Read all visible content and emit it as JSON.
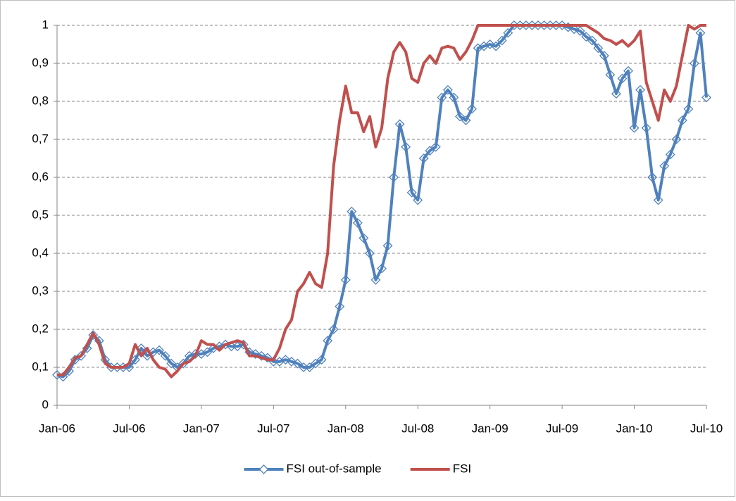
{
  "chart_data": {
    "type": "line",
    "x": [
      0,
      0.5,
      1,
      1.5,
      2,
      2.5,
      3,
      3.5,
      4,
      4.5,
      5,
      5.5,
      6,
      6.5,
      7,
      7.5,
      8,
      8.5,
      9,
      9.5,
      10,
      10.5,
      11,
      11.5,
      12,
      12.5,
      13,
      13.5,
      14,
      14.5,
      15,
      15.5,
      16,
      16.5,
      17,
      17.5,
      18,
      18.5,
      19,
      19.5,
      20,
      20.5,
      21,
      21.5,
      22,
      22.5,
      23,
      23.5,
      24,
      24.5,
      25,
      25.5,
      26,
      26.5,
      27,
      27.5,
      28,
      28.5,
      29,
      29.5,
      30,
      30.5,
      31,
      31.5,
      32,
      32.5,
      33,
      33.5,
      34,
      34.5,
      35,
      35.5,
      36,
      36.5,
      37,
      37.5,
      38,
      38.5,
      39,
      39.5,
      40,
      40.5,
      41,
      41.5,
      42,
      42.5,
      43,
      43.5,
      44,
      44.5,
      45,
      45.5,
      46,
      46.5,
      47,
      47.5,
      48,
      48.5,
      49,
      49.5,
      50,
      50.5,
      51,
      51.5,
      52,
      52.5,
      53,
      53.5,
      54
    ],
    "series": [
      {
        "name": "FSI out-of-sample",
        "color": "#4f81bd",
        "marker": "diamond",
        "values": [
          0.08,
          0.075,
          0.09,
          0.12,
          0.13,
          0.15,
          0.185,
          0.17,
          0.12,
          0.1,
          0.1,
          0.1,
          0.1,
          0.12,
          0.15,
          0.13,
          0.14,
          0.145,
          0.13,
          0.11,
          0.1,
          0.11,
          0.13,
          0.135,
          0.135,
          0.14,
          0.15,
          0.155,
          0.16,
          0.155,
          0.155,
          0.16,
          0.14,
          0.135,
          0.13,
          0.125,
          0.115,
          0.115,
          0.12,
          0.115,
          0.11,
          0.1,
          0.1,
          0.11,
          0.12,
          0.17,
          0.2,
          0.26,
          0.33,
          0.51,
          0.48,
          0.44,
          0.4,
          0.33,
          0.36,
          0.42,
          0.6,
          0.74,
          0.68,
          0.56,
          0.54,
          0.65,
          0.67,
          0.68,
          0.81,
          0.83,
          0.81,
          0.76,
          0.75,
          0.78,
          0.94,
          0.945,
          0.95,
          0.945,
          0.96,
          0.98,
          1,
          1,
          1,
          1,
          1,
          1,
          1,
          1,
          1,
          0.995,
          0.99,
          0.985,
          0.97,
          0.96,
          0.94,
          0.92,
          0.87,
          0.82,
          0.86,
          0.88,
          0.73,
          0.83,
          0.73,
          0.6,
          0.54,
          0.63,
          0.66,
          0.7,
          0.75,
          0.78,
          0.9,
          0.98,
          0.81
        ]
      },
      {
        "name": "FSI",
        "color": "#c0504d",
        "values": [
          0.08,
          0.08,
          0.1,
          0.125,
          0.13,
          0.16,
          0.19,
          0.16,
          0.11,
          0.1,
          0.1,
          0.1,
          0.11,
          0.16,
          0.13,
          0.15,
          0.12,
          0.1,
          0.095,
          0.075,
          0.09,
          0.11,
          0.115,
          0.13,
          0.17,
          0.16,
          0.16,
          0.145,
          0.16,
          0.165,
          0.17,
          0.165,
          0.13,
          0.13,
          0.125,
          0.12,
          0.12,
          0.15,
          0.2,
          0.225,
          0.3,
          0.32,
          0.35,
          0.32,
          0.31,
          0.4,
          0.63,
          0.75,
          0.84,
          0.77,
          0.77,
          0.72,
          0.76,
          0.68,
          0.73,
          0.86,
          0.93,
          0.955,
          0.93,
          0.86,
          0.85,
          0.9,
          0.92,
          0.9,
          0.94,
          0.945,
          0.94,
          0.91,
          0.93,
          0.96,
          1,
          1,
          1,
          1,
          1,
          1,
          1,
          1,
          1,
          1,
          1,
          1,
          1,
          1,
          1,
          1,
          1,
          1,
          1,
          0.99,
          0.98,
          0.965,
          0.96,
          0.95,
          0.96,
          0.945,
          0.96,
          0.985,
          0.85,
          0.8,
          0.75,
          0.83,
          0.8,
          0.84,
          0.92,
          1,
          0.99,
          1,
          1
        ]
      }
    ],
    "xlim": [
      0,
      54
    ],
    "xticks": [
      {
        "value": 0,
        "label": "Jan-06"
      },
      {
        "value": 6,
        "label": "Jul-06"
      },
      {
        "value": 12,
        "label": "Jan-07"
      },
      {
        "value": 18,
        "label": "Jul-07"
      },
      {
        "value": 24,
        "label": "Jan-08"
      },
      {
        "value": 30,
        "label": "Jul-08"
      },
      {
        "value": 36,
        "label": "Jan-09"
      },
      {
        "value": 42,
        "label": "Jul-09"
      },
      {
        "value": 48,
        "label": "Jan-10"
      },
      {
        "value": 54,
        "label": "Jul-10"
      }
    ],
    "ylim": [
      0,
      1
    ],
    "yticks": [
      0,
      {
        "value": 0.1,
        "label": "0,1"
      },
      {
        "value": 0.2,
        "label": "0,2"
      },
      {
        "value": 0.3,
        "label": "0,3"
      },
      {
        "value": 0.4,
        "label": "0,4"
      },
      {
        "value": 0.5,
        "label": "0,5"
      },
      {
        "value": 0.6,
        "label": "0,6"
      },
      {
        "value": 0.7,
        "label": "0,7"
      },
      {
        "value": 0.8,
        "label": "0,8"
      },
      {
        "value": 0.9,
        "label": "0,9"
      },
      1
    ],
    "grid": true,
    "legend": "bottom"
  }
}
